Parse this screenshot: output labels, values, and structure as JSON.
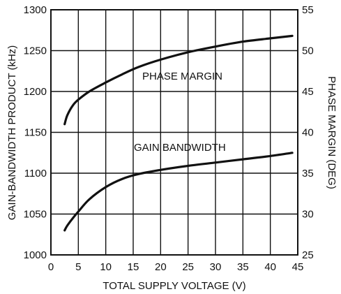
{
  "chart_data": {
    "type": "line",
    "xlabel": "TOTAL SUPPLY VOLTAGE (V)",
    "ylabel": "GAIN-BANDWIDTH PRODUCT (kHz)",
    "y2label": "PHASE MARGIN (DEG)",
    "xlim": [
      0,
      45
    ],
    "ylim": [
      1000,
      1300
    ],
    "y2lim": [
      25,
      55
    ],
    "grid": true,
    "x_ticks": [
      0,
      5,
      10,
      15,
      20,
      25,
      30,
      35,
      40,
      45
    ],
    "y_ticks": [
      1000,
      1050,
      1100,
      1150,
      1200,
      1250,
      1300
    ],
    "y2_ticks": [
      25,
      30,
      35,
      40,
      45,
      50,
      55
    ],
    "annotations": [
      "PHASE MARGIN",
      "GAIN BANDWIDTH"
    ],
    "series": [
      {
        "name": "PHASE MARGIN",
        "axis": "right",
        "x": [
          2.5,
          3,
          4,
          5,
          7,
          10,
          13,
          16,
          20,
          25,
          30,
          35,
          40,
          44
        ],
        "y": [
          41,
          42.1,
          43.3,
          44,
          45,
          46.1,
          47.1,
          48,
          48.9,
          49.8,
          50.5,
          51.1,
          51.5,
          51.8
        ]
      },
      {
        "name": "GAIN BANDWIDTH",
        "axis": "left",
        "x": [
          2.5,
          3,
          4,
          5,
          7,
          10,
          13,
          16,
          20,
          25,
          30,
          35,
          40,
          44
        ],
        "y": [
          1030,
          1036,
          1045,
          1053,
          1068,
          1083,
          1093,
          1099,
          1104,
          1109,
          1113,
          1117,
          1121,
          1125
        ]
      }
    ]
  }
}
